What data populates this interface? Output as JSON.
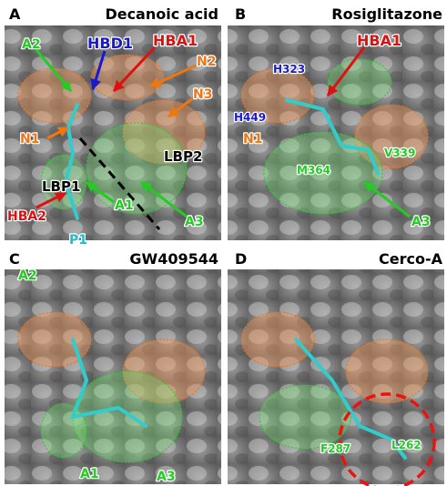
{
  "panels": [
    {
      "letter": "A",
      "title": "Decanoic acid",
      "labels": [
        "A2",
        "HBD1",
        "HBA1",
        "N2",
        "N3",
        "N1",
        "LBP2",
        "LBP1",
        "HBA2",
        "P1",
        "A1",
        "A3"
      ]
    },
    {
      "letter": "B",
      "title": "Rosiglitazone",
      "labels": [
        "H323",
        "HBA1",
        "H449",
        "N1",
        "V339",
        "M364",
        "A3"
      ]
    },
    {
      "letter": "C",
      "title": "GW409544",
      "labels": [
        "A2",
        "A1",
        "A3"
      ]
    },
    {
      "letter": "D",
      "title": "Cerco-A",
      "labels": [
        "F287",
        "L262"
      ]
    }
  ]
}
